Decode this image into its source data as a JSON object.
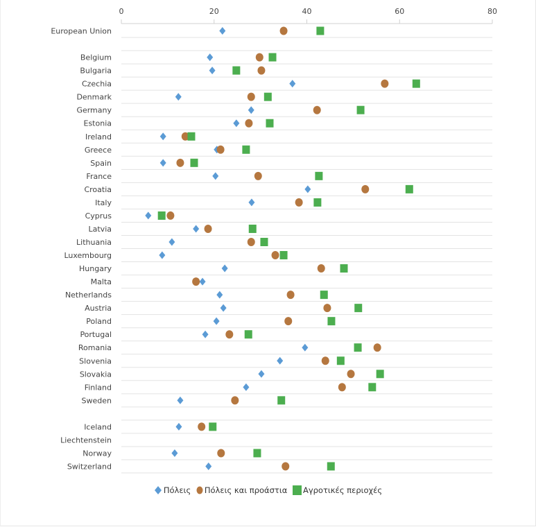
{
  "chart_data": {
    "type": "scatter",
    "title": "",
    "xlabel": "",
    "ylabel": "",
    "xlim": [
      0,
      80
    ],
    "x_ticks": [
      "0",
      "20",
      "40",
      "60",
      "80"
    ],
    "grid": true,
    "legend_position": "bottom",
    "series": [
      {
        "name": "Πόλεις",
        "marker": "diamond",
        "color": "#5b9bd5"
      },
      {
        "name": "Πόλεις και προάστια",
        "marker": "circle",
        "color": "#b5773f"
      },
      {
        "name": "Αγροτικές περιοχές",
        "marker": "square",
        "color": "#4cae4f"
      }
    ],
    "categories": [
      {
        "label": "European Union",
        "values": [
          21.8,
          35.0,
          42.9
        ]
      },
      null,
      {
        "label": "Belgium",
        "values": [
          19.1,
          29.8,
          32.6
        ]
      },
      {
        "label": "Bulgaria",
        "values": [
          19.6,
          30.2,
          24.8
        ]
      },
      {
        "label": "Czechia",
        "values": [
          36.9,
          56.8,
          63.6
        ]
      },
      {
        "label": "Denmark",
        "values": [
          12.3,
          28.0,
          31.6
        ]
      },
      {
        "label": "Germany",
        "values": [
          28.0,
          42.2,
          51.6
        ]
      },
      {
        "label": "Estonia",
        "values": [
          24.8,
          27.5,
          32.0
        ]
      },
      {
        "label": "Ireland",
        "values": [
          9.0,
          13.8,
          15.1
        ]
      },
      {
        "label": "Greece",
        "values": [
          20.6,
          21.4,
          26.9
        ]
      },
      {
        "label": "Spain",
        "values": [
          9.0,
          12.7,
          15.7
        ]
      },
      {
        "label": "France",
        "values": [
          20.3,
          29.5,
          42.6
        ]
      },
      {
        "label": "Croatia",
        "values": [
          40.2,
          52.6,
          62.1
        ]
      },
      {
        "label": "Italy",
        "values": [
          28.1,
          38.3,
          42.3
        ]
      },
      {
        "label": "Cyprus",
        "values": [
          5.8,
          10.6,
          8.7
        ]
      },
      {
        "label": "Latvia",
        "values": [
          16.1,
          18.7,
          28.3
        ]
      },
      {
        "label": "Lithuania",
        "values": [
          10.9,
          28.0,
          30.8
        ]
      },
      {
        "label": "Luxembourg",
        "values": [
          8.8,
          33.2,
          35.0
        ]
      },
      {
        "label": "Hungary",
        "values": [
          22.3,
          43.1,
          48.0
        ]
      },
      {
        "label": "Malta",
        "values": [
          17.5,
          16.1,
          null
        ]
      },
      {
        "label": "Netherlands",
        "values": [
          21.2,
          36.5,
          43.7
        ]
      },
      {
        "label": "Austria",
        "values": [
          22.0,
          44.4,
          51.1
        ]
      },
      {
        "label": "Poland",
        "values": [
          20.5,
          36.0,
          45.3
        ]
      },
      {
        "label": "Portugal",
        "values": [
          18.1,
          23.3,
          27.4
        ]
      },
      {
        "label": "Romania",
        "values": [
          39.6,
          55.2,
          51.0
        ]
      },
      {
        "label": "Slovenia",
        "values": [
          34.2,
          44.0,
          47.3
        ]
      },
      {
        "label": "Slovakia",
        "values": [
          30.2,
          49.5,
          55.8
        ]
      },
      {
        "label": "Finland",
        "values": [
          26.9,
          47.6,
          54.1
        ]
      },
      {
        "label": "Sweden",
        "values": [
          12.7,
          24.5,
          34.5
        ]
      },
      null,
      {
        "label": "Iceland",
        "values": [
          12.4,
          17.3,
          19.7
        ]
      },
      {
        "label": "Liechtenstein",
        "values": [
          null,
          null,
          null
        ]
      },
      {
        "label": "Norway",
        "values": [
          11.5,
          21.5,
          29.3
        ]
      },
      {
        "label": "Switzerland",
        "values": [
          18.8,
          35.4,
          45.2
        ]
      }
    ]
  }
}
